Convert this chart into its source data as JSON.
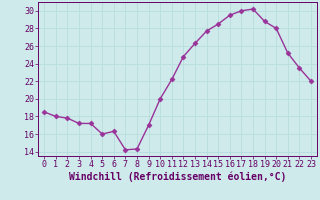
{
  "x": [
    0,
    1,
    2,
    3,
    4,
    5,
    6,
    7,
    8,
    9,
    10,
    11,
    12,
    13,
    14,
    15,
    16,
    17,
    18,
    19,
    20,
    21,
    22,
    23
  ],
  "y": [
    18.5,
    18.0,
    17.8,
    17.2,
    17.2,
    16.0,
    16.3,
    14.2,
    14.3,
    17.0,
    20.0,
    22.2,
    24.8,
    26.3,
    27.7,
    28.5,
    29.5,
    30.0,
    30.2,
    28.8,
    28.0,
    25.2,
    23.5,
    22.0
  ],
  "line_color": "#993399",
  "marker": "D",
  "markersize": 2.5,
  "linewidth": 1.0,
  "xlabel": "Windchill (Refroidissement éolien,°C)",
  "xlabel_fontsize": 7,
  "ylim": [
    13.5,
    31
  ],
  "xlim": [
    -0.5,
    23.5
  ],
  "yticks": [
    14,
    16,
    18,
    20,
    22,
    24,
    26,
    28,
    30
  ],
  "xticks": [
    0,
    1,
    2,
    3,
    4,
    5,
    6,
    7,
    8,
    9,
    10,
    11,
    12,
    13,
    14,
    15,
    16,
    17,
    18,
    19,
    20,
    21,
    22,
    23
  ],
  "background_color": "#ceeaea",
  "grid_color": "#b8dede",
  "tick_color": "#660066",
  "tick_fontsize": 6,
  "xlabel_fontsize_val": 7,
  "axis_color": "#660066"
}
